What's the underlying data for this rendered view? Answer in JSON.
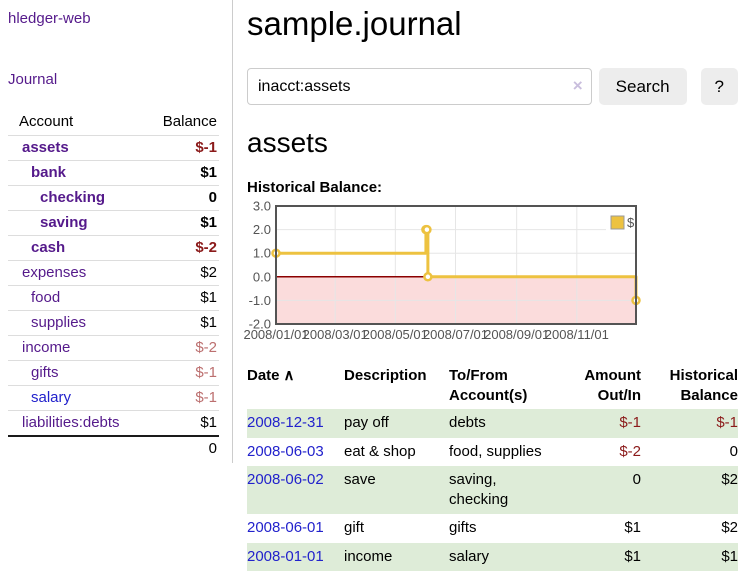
{
  "sidebar": {
    "brand": "hledger-web",
    "journal_link": "Journal",
    "accounts_header": {
      "account": "Account",
      "balance": "Balance"
    },
    "accounts": [
      {
        "name": "assets",
        "depth": 0,
        "bold": true,
        "link_color": "purple",
        "balance": "$-1",
        "balance_class": "neg"
      },
      {
        "name": "bank",
        "depth": 1,
        "bold": true,
        "link_color": "purple",
        "balance": "$1",
        "balance_class": ""
      },
      {
        "name": "checking",
        "depth": 2,
        "bold": true,
        "link_color": "purple",
        "balance": "0",
        "balance_class": ""
      },
      {
        "name": "saving",
        "depth": 2,
        "bold": true,
        "link_color": "purple",
        "balance": "$1",
        "balance_class": ""
      },
      {
        "name": "cash",
        "depth": 1,
        "bold": true,
        "link_color": "purple",
        "balance": "$-2",
        "balance_class": "neg"
      },
      {
        "name": "expenses",
        "depth": 0,
        "bold": false,
        "link_color": "purple",
        "balance": "$2",
        "balance_class": ""
      },
      {
        "name": "food",
        "depth": 1,
        "bold": false,
        "link_color": "purple",
        "balance": "$1",
        "balance_class": ""
      },
      {
        "name": "supplies",
        "depth": 1,
        "bold": false,
        "link_color": "purple",
        "balance": "$1",
        "balance_class": ""
      },
      {
        "name": "income",
        "depth": 0,
        "bold": false,
        "link_color": "purple",
        "balance": "$-2",
        "balance_class": "neg-light"
      },
      {
        "name": "gifts",
        "depth": 1,
        "bold": false,
        "link_color": "purple",
        "balance": "$-1",
        "balance_class": "neg-light"
      },
      {
        "name": "salary",
        "depth": 1,
        "bold": false,
        "link_color": "blue",
        "balance": "$-1",
        "balance_class": "neg-light"
      },
      {
        "name": "liabilities:debts",
        "depth": 0,
        "bold": false,
        "link_color": "purple",
        "balance": "$1",
        "balance_class": ""
      }
    ],
    "total": "0"
  },
  "main": {
    "title": "sample.journal",
    "search": {
      "value": "inacct:assets",
      "clear_icon": "×",
      "button_label": "Search",
      "help_label": "?"
    },
    "account_heading": "assets",
    "chart_label": "Historical Balance:"
  },
  "chart_data": {
    "type": "line",
    "step": true,
    "title": "Historical Balance:",
    "series": [
      {
        "name": "$",
        "color": "#edc240",
        "points": [
          [
            "2008-01-01",
            1
          ],
          [
            "2008-06-01",
            2
          ],
          [
            "2008-06-02",
            2
          ],
          [
            "2008-06-03",
            0
          ],
          [
            "2008-12-31",
            -1
          ]
        ]
      }
    ],
    "x_range": [
      "2008-01-01",
      "2008-12-31"
    ],
    "y_range": [
      -2,
      3
    ],
    "y_ticks": [
      3,
      2,
      1,
      0,
      -1,
      -2
    ],
    "x_ticks": [
      "2008-01-01",
      "2008-03-01",
      "2008-05-01",
      "2008-07-01",
      "2008-09-01",
      "2008-11-01"
    ],
    "x_tick_labels": [
      "2008/01/01",
      "2008/03/01",
      "2008/05/01",
      "2008/07/01",
      "2008/09/01",
      "2008/11/01"
    ],
    "legend": [
      "$"
    ],
    "legend_position": "top-right",
    "grid": true,
    "colors": {
      "negative_region": "#fbdcdc",
      "zero_line": "#8b0000",
      "grid": "#e6e6e6",
      "border": "#545454",
      "tick_label": "#545454",
      "marker_fill": "#ffffff",
      "legend_box_border": "#999999"
    }
  },
  "register": {
    "headers": {
      "date": "Date",
      "sort_icon": "∧",
      "description": "Description",
      "accounts": "To/From Account(s)",
      "amount": "Amount Out/In",
      "balance": "Historical Balance"
    },
    "rows": [
      {
        "date": "2008-12-31",
        "description": "pay off",
        "accounts": "debts",
        "amount": "$-1",
        "amount_class": "neg",
        "balance": "$-1",
        "balance_class": "neg"
      },
      {
        "date": "2008-06-03",
        "description": "eat & shop",
        "accounts": "food, supplies",
        "amount": "$-2",
        "amount_class": "neg",
        "balance": "0",
        "balance_class": ""
      },
      {
        "date": "2008-06-02",
        "description": "save",
        "accounts": "saving, checking",
        "amount": "0",
        "amount_class": "",
        "balance": "$2",
        "balance_class": ""
      },
      {
        "date": "2008-06-01",
        "description": "gift",
        "accounts": "gifts",
        "amount": "$1",
        "amount_class": "",
        "balance": "$2",
        "balance_class": ""
      },
      {
        "date": "2008-01-01",
        "description": "income",
        "accounts": "salary",
        "amount": "$1",
        "amount_class": "",
        "balance": "$1",
        "balance_class": ""
      }
    ]
  }
}
